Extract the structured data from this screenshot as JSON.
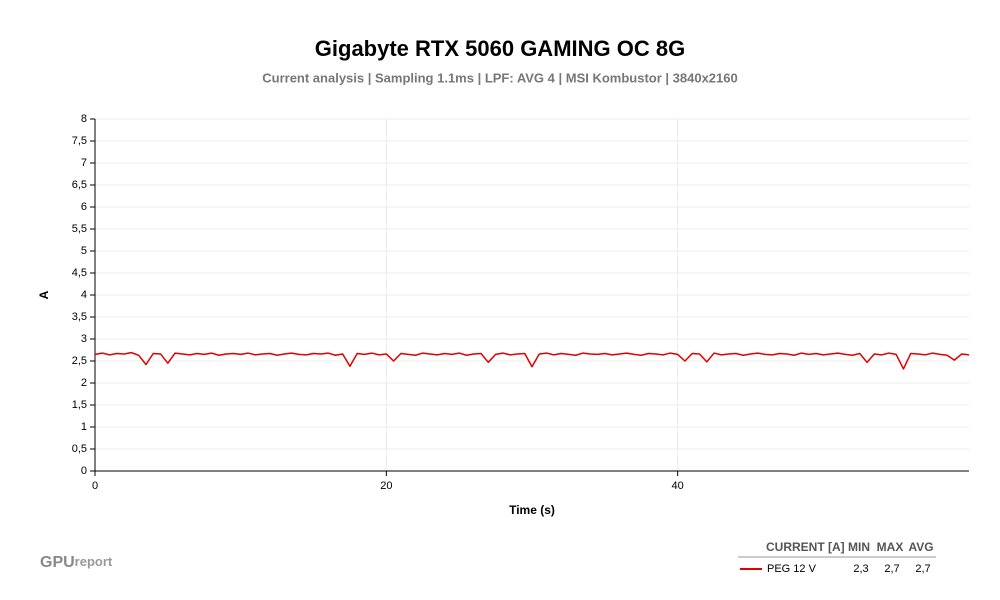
{
  "chart_data": {
    "type": "line",
    "title": "Gigabyte RTX 5060 GAMING OC 8G",
    "subtitle": "Current analysis | Sampling 1.1ms | LPF: AVG 4 | MSI Kombustor | 3840x2160",
    "x_label": "Time (s)",
    "y_label": "A",
    "xlim": [
      0,
      60
    ],
    "xticks": [
      0,
      20,
      40
    ],
    "ylim": [
      0,
      8
    ],
    "yticks": [
      0,
      {
        "value": 0.5,
        "label": "0,5"
      },
      1,
      {
        "value": 1.5,
        "label": "1,5"
      },
      2,
      {
        "value": 2.5,
        "label": "2,5"
      },
      3,
      {
        "value": 3.5,
        "label": "3,5"
      },
      4,
      {
        "value": 4.5,
        "label": "4,5"
      },
      5,
      {
        "value": 5.5,
        "label": "5,5"
      },
      6,
      {
        "value": 6.5,
        "label": "6,5"
      },
      7,
      {
        "value": 7.5,
        "label": "7,5"
      },
      8
    ],
    "grid": true,
    "x": [
      0,
      0.5,
      1,
      1.5,
      2,
      2.5,
      3,
      3.5,
      4,
      4.5,
      5,
      5.5,
      6,
      6.5,
      7,
      7.5,
      8,
      8.5,
      9,
      9.5,
      10,
      10.5,
      11,
      11.5,
      12,
      12.5,
      13,
      13.5,
      14,
      14.5,
      15,
      15.5,
      16,
      16.5,
      17,
      17.5,
      18,
      18.5,
      19,
      19.5,
      20,
      20.5,
      21,
      21.5,
      22,
      22.5,
      23,
      23.5,
      24,
      24.5,
      25,
      25.5,
      26,
      26.5,
      27,
      27.5,
      28,
      28.5,
      29,
      29.5,
      30,
      30.5,
      31,
      31.5,
      32,
      32.5,
      33,
      33.5,
      34,
      34.5,
      35,
      35.5,
      36,
      36.5,
      37,
      37.5,
      38,
      38.5,
      39,
      39.5,
      40,
      40.5,
      41,
      41.5,
      42,
      42.5,
      43,
      43.5,
      44,
      44.5,
      45,
      45.5,
      46,
      46.5,
      47,
      47.5,
      48,
      48.5,
      49,
      49.5,
      50,
      50.5,
      51,
      51.5,
      52,
      52.5,
      53,
      53.5,
      54,
      54.5,
      55,
      55.5,
      56,
      56.5,
      57,
      57.5,
      58,
      58.5,
      59,
      59.5,
      60
    ],
    "series": [
      {
        "name": "PEG 12 V",
        "color": "#e00000",
        "values": [
          2.65,
          2.68,
          2.64,
          2.67,
          2.66,
          2.69,
          2.63,
          2.42,
          2.67,
          2.66,
          2.45,
          2.68,
          2.66,
          2.64,
          2.67,
          2.65,
          2.68,
          2.63,
          2.66,
          2.67,
          2.65,
          2.68,
          2.64,
          2.66,
          2.67,
          2.63,
          2.66,
          2.68,
          2.65,
          2.64,
          2.67,
          2.66,
          2.68,
          2.63,
          2.66,
          2.38,
          2.67,
          2.65,
          2.68,
          2.64,
          2.66,
          2.5,
          2.67,
          2.65,
          2.63,
          2.68,
          2.66,
          2.64,
          2.67,
          2.65,
          2.68,
          2.63,
          2.66,
          2.67,
          2.47,
          2.65,
          2.68,
          2.64,
          2.66,
          2.67,
          2.37,
          2.66,
          2.68,
          2.64,
          2.67,
          2.65,
          2.63,
          2.68,
          2.66,
          2.65,
          2.67,
          2.64,
          2.66,
          2.68,
          2.65,
          2.63,
          2.67,
          2.66,
          2.64,
          2.68,
          2.65,
          2.5,
          2.67,
          2.66,
          2.48,
          2.68,
          2.64,
          2.66,
          2.67,
          2.63,
          2.66,
          2.68,
          2.65,
          2.64,
          2.67,
          2.66,
          2.63,
          2.68,
          2.65,
          2.67,
          2.64,
          2.66,
          2.68,
          2.65,
          2.63,
          2.67,
          2.47,
          2.66,
          2.64,
          2.68,
          2.65,
          2.32,
          2.67,
          2.66,
          2.64,
          2.68,
          2.65,
          2.63,
          2.52,
          2.66,
          2.64
        ]
      }
    ],
    "legend_table": {
      "headers": [
        "CURRENT [A]",
        "MIN",
        "MAX",
        "AVG"
      ],
      "row": [
        "2,3",
        "2,7",
        "2,7"
      ]
    },
    "logo": {
      "bold": "GPU",
      "light": "report"
    }
  }
}
